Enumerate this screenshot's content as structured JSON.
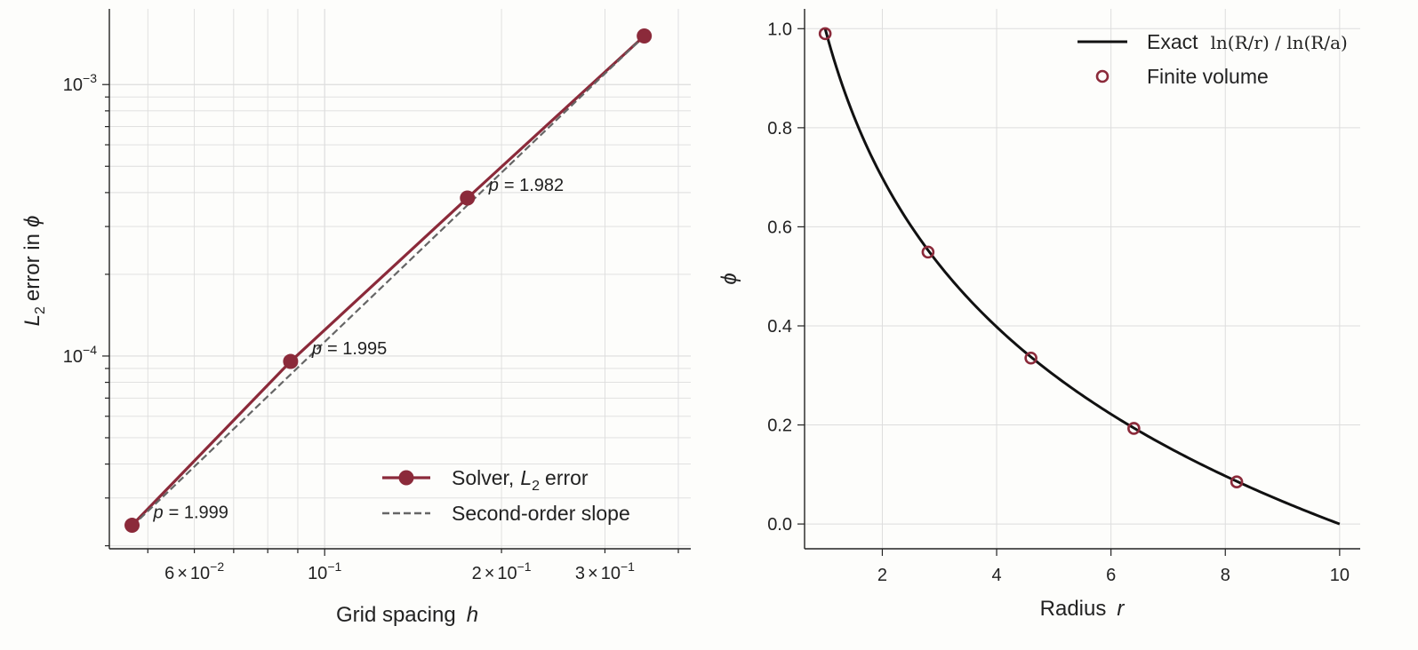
{
  "colors": {
    "solver": "#8b2a3a",
    "ref": "#666666",
    "exact": "#111111",
    "grid": "#dddddd",
    "axis": "#222222"
  },
  "chart_data": [
    {
      "type": "line",
      "xscale": "log",
      "yscale": "log",
      "xlim": [
        0.043,
        0.42
      ],
      "ylim": [
        1.95e-05,
        0.0019
      ],
      "grid": true,
      "xlabel": "Grid spacing",
      "xlabel_var": "h",
      "ylabel_sub": "2",
      "ylabel_rest": "error in",
      "ylabel_var": "ϕ",
      "xticks": [
        {
          "value": 0.06,
          "mant": "6",
          "times": "×",
          "base": "10",
          "exp": "−2"
        },
        {
          "value": 0.1,
          "mant": "",
          "times": "",
          "base": "10",
          "exp": "−1"
        },
        {
          "value": 0.2,
          "mant": "2",
          "times": "×",
          "base": "10",
          "exp": "−1"
        },
        {
          "value": 0.3,
          "mant": "3",
          "times": "×",
          "base": "10",
          "exp": "−1"
        }
      ],
      "yticks": [
        {
          "value": 0.0001,
          "base": "10",
          "exp": "−4"
        },
        {
          "value": 0.001,
          "base": "10",
          "exp": "−3"
        }
      ],
      "series": [
        {
          "name": "Solver,",
          "name_var": "L",
          "name_sub": "2",
          "name_rest": "error",
          "style": "solid-marker",
          "x": [
            0.047,
            0.0875,
            0.175,
            0.35
          ],
          "y": [
            2.38e-05,
            9.55e-05,
            0.000382,
            0.00151
          ]
        },
        {
          "name": "Second-order slope",
          "style": "dashed",
          "x": [
            0.047,
            0.35
          ],
          "y": [
            2.36e-05,
            0.00151
          ]
        }
      ],
      "annotations": [
        {
          "var": "p",
          "text": "= 1.999",
          "x": 0.047,
          "y": 2.38e-05
        },
        {
          "var": "p",
          "text": "= 1.995",
          "x": 0.0875,
          "y": 9.55e-05
        },
        {
          "var": "p",
          "text": "= 1.982",
          "x": 0.175,
          "y": 0.000382
        }
      ],
      "legend_position": "lower-right"
    },
    {
      "type": "line",
      "xlim": [
        0.64,
        10.36
      ],
      "ylim": [
        -0.05,
        1.04
      ],
      "grid": true,
      "xlabel": "Radius",
      "xlabel_var": "r",
      "ylabel": "ϕ",
      "xticks": [
        2,
        4,
        6,
        8,
        10
      ],
      "yticks": [
        0.0,
        0.2,
        0.4,
        0.6,
        0.8,
        1.0
      ],
      "ytick_labels": [
        "0.0",
        "0.2",
        "0.4",
        "0.6",
        "0.8",
        "1.0"
      ],
      "series": [
        {
          "name": "Exact",
          "name_formula": "ln(R/r) / ln(R/a)",
          "style": "solid",
          "x": [
            1,
            1.25,
            1.5,
            1.75,
            2,
            2.5,
            3,
            3.5,
            4,
            4.5,
            5,
            5.5,
            6,
            6.5,
            7,
            7.5,
            8,
            8.5,
            9,
            9.5,
            10
          ],
          "y": [
            1.0,
            0.903,
            0.824,
            0.757,
            0.699,
            0.602,
            0.523,
            0.456,
            0.398,
            0.347,
            0.301,
            0.26,
            0.222,
            0.187,
            0.155,
            0.125,
            0.097,
            0.071,
            0.046,
            0.022,
            0.0
          ]
        },
        {
          "name": "Finite volume",
          "style": "open-marker",
          "x": [
            1.0,
            2.8,
            4.6,
            6.4,
            8.2
          ],
          "y": [
            0.99,
            0.549,
            0.335,
            0.193,
            0.085
          ]
        }
      ],
      "legend_position": "top-right"
    }
  ]
}
